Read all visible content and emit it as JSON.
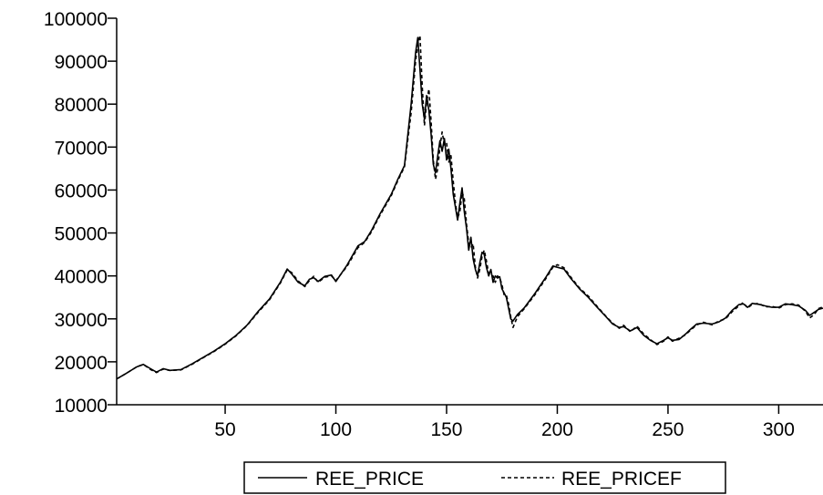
{
  "chart_data": {
    "type": "line",
    "title": "",
    "xlabel": "",
    "ylabel": "",
    "xlim": [
      1,
      320
    ],
    "ylim": [
      10000,
      100000
    ],
    "x_ticks": [
      50,
      100,
      150,
      200,
      250,
      300
    ],
    "y_ticks": [
      10000,
      20000,
      30000,
      40000,
      50000,
      60000,
      70000,
      80000,
      90000,
      100000
    ],
    "grid": false,
    "legend_position": "bottom",
    "series": [
      {
        "name": "REE_PRICE",
        "style": "solid",
        "color": "#000000",
        "points": [
          [
            1,
            16000
          ],
          [
            5,
            17200
          ],
          [
            10,
            18800
          ],
          [
            13,
            19400
          ],
          [
            16,
            18500
          ],
          [
            19,
            17600
          ],
          [
            22,
            18400
          ],
          [
            25,
            18000
          ],
          [
            30,
            18200
          ],
          [
            35,
            19500
          ],
          [
            40,
            21000
          ],
          [
            45,
            22500
          ],
          [
            50,
            24200
          ],
          [
            55,
            26200
          ],
          [
            60,
            28600
          ],
          [
            65,
            31800
          ],
          [
            70,
            34600
          ],
          [
            75,
            38600
          ],
          [
            78,
            41600
          ],
          [
            80,
            40500
          ],
          [
            83,
            38500
          ],
          [
            86,
            37700
          ],
          [
            88,
            39200
          ],
          [
            90,
            39600
          ],
          [
            92,
            38700
          ],
          [
            95,
            39900
          ],
          [
            98,
            40200
          ],
          [
            100,
            38700
          ],
          [
            105,
            42500
          ],
          [
            110,
            47000
          ],
          [
            113,
            48000
          ],
          [
            116,
            50500
          ],
          [
            120,
            54500
          ],
          [
            125,
            59000
          ],
          [
            128,
            62500
          ],
          [
            131,
            65700
          ],
          [
            134,
            80000
          ],
          [
            136,
            92000
          ],
          [
            137,
            95500
          ],
          [
            138,
            88000
          ],
          [
            139,
            80000
          ],
          [
            140,
            76500
          ],
          [
            141,
            82000
          ],
          [
            142,
            78500
          ],
          [
            143,
            73000
          ],
          [
            144,
            66000
          ],
          [
            145,
            64000
          ],
          [
            146,
            68000
          ],
          [
            147,
            71500
          ],
          [
            148,
            69000
          ],
          [
            149,
            72000
          ],
          [
            150,
            67000
          ],
          [
            151,
            69500
          ],
          [
            152,
            65000
          ],
          [
            153,
            59000
          ],
          [
            154,
            56000
          ],
          [
            155,
            53000
          ],
          [
            156,
            57000
          ],
          [
            157,
            60500
          ],
          [
            158,
            55000
          ],
          [
            159,
            51000
          ],
          [
            160,
            46000
          ],
          [
            161,
            49000
          ],
          [
            162,
            44000
          ],
          [
            163,
            41500
          ],
          [
            164,
            40000
          ],
          [
            165,
            43000
          ],
          [
            166,
            45500
          ],
          [
            167,
            45000
          ],
          [
            168,
            42000
          ],
          [
            169,
            40000
          ],
          [
            170,
            41500
          ],
          [
            171,
            38500
          ],
          [
            172,
            40000
          ],
          [
            173,
            39500
          ],
          [
            174,
            39800
          ],
          [
            175,
            37000
          ],
          [
            176,
            36000
          ],
          [
            177,
            35000
          ],
          [
            178,
            32500
          ],
          [
            179,
            30000
          ],
          [
            180,
            29500
          ],
          [
            182,
            31000
          ],
          [
            185,
            32500
          ],
          [
            190,
            36000
          ],
          [
            195,
            39800
          ],
          [
            198,
            42300
          ],
          [
            200,
            42000
          ],
          [
            203,
            41600
          ],
          [
            206,
            39500
          ],
          [
            210,
            37000
          ],
          [
            214,
            35000
          ],
          [
            218,
            32700
          ],
          [
            222,
            30500
          ],
          [
            225,
            28800
          ],
          [
            228,
            28000
          ],
          [
            230,
            28200
          ],
          [
            233,
            27200
          ],
          [
            236,
            28000
          ],
          [
            239,
            26200
          ],
          [
            242,
            25000
          ],
          [
            245,
            24200
          ],
          [
            248,
            25000
          ],
          [
            250,
            25600
          ],
          [
            252,
            25000
          ],
          [
            255,
            25200
          ],
          [
            258,
            26500
          ],
          [
            260,
            27500
          ],
          [
            263,
            28800
          ],
          [
            266,
            29000
          ],
          [
            270,
            28800
          ],
          [
            273,
            29300
          ],
          [
            276,
            30200
          ],
          [
            279,
            32000
          ],
          [
            282,
            33300
          ],
          [
            284,
            33500
          ],
          [
            286,
            32700
          ],
          [
            288,
            33600
          ],
          [
            291,
            33400
          ],
          [
            294,
            33000
          ],
          [
            297,
            32700
          ],
          [
            300,
            32700
          ],
          [
            303,
            33500
          ],
          [
            306,
            33300
          ],
          [
            309,
            33000
          ],
          [
            312,
            32000
          ],
          [
            314,
            30800
          ],
          [
            316,
            31500
          ],
          [
            318,
            32200
          ],
          [
            320,
            32500
          ]
        ]
      },
      {
        "name": "REE_PRICEF",
        "style": "dashed",
        "color": "#000000",
        "points": [
          [
            1,
            16000
          ],
          [
            5,
            17200
          ],
          [
            10,
            18800
          ],
          [
            13,
            19400
          ],
          [
            16,
            18300
          ],
          [
            19,
            17500
          ],
          [
            22,
            18300
          ],
          [
            25,
            18000
          ],
          [
            30,
            18100
          ],
          [
            35,
            19400
          ],
          [
            40,
            20900
          ],
          [
            45,
            22400
          ],
          [
            50,
            24100
          ],
          [
            55,
            26100
          ],
          [
            60,
            28500
          ],
          [
            65,
            31600
          ],
          [
            70,
            34400
          ],
          [
            75,
            38400
          ],
          [
            78,
            41400
          ],
          [
            80,
            40800
          ],
          [
            83,
            38800
          ],
          [
            86,
            37500
          ],
          [
            88,
            38900
          ],
          [
            90,
            39900
          ],
          [
            92,
            38500
          ],
          [
            95,
            39700
          ],
          [
            98,
            40000
          ],
          [
            100,
            38900
          ],
          [
            105,
            42200
          ],
          [
            110,
            46600
          ],
          [
            113,
            47800
          ],
          [
            116,
            50200
          ],
          [
            120,
            54200
          ],
          [
            125,
            58700
          ],
          [
            128,
            62200
          ],
          [
            131,
            65400
          ],
          [
            134,
            78000
          ],
          [
            136,
            90000
          ],
          [
            137,
            94000
          ],
          [
            138,
            96000
          ],
          [
            139,
            84000
          ],
          [
            140,
            75000
          ],
          [
            141,
            80500
          ],
          [
            142,
            83500
          ],
          [
            143,
            76000
          ],
          [
            144,
            67000
          ],
          [
            145,
            62500
          ],
          [
            146,
            65000
          ],
          [
            147,
            70000
          ],
          [
            148,
            73500
          ],
          [
            149,
            70500
          ],
          [
            150,
            71000
          ],
          [
            151,
            66500
          ],
          [
            152,
            68000
          ],
          [
            153,
            62000
          ],
          [
            154,
            57000
          ],
          [
            155,
            53500
          ],
          [
            156,
            55000
          ],
          [
            157,
            59500
          ],
          [
            158,
            58000
          ],
          [
            159,
            52000
          ],
          [
            160,
            47500
          ],
          [
            161,
            46500
          ],
          [
            162,
            47500
          ],
          [
            163,
            42000
          ],
          [
            164,
            39500
          ],
          [
            165,
            41500
          ],
          [
            166,
            44500
          ],
          [
            167,
            46000
          ],
          [
            168,
            43500
          ],
          [
            169,
            40500
          ],
          [
            170,
            40000
          ],
          [
            171,
            40000
          ],
          [
            172,
            38500
          ],
          [
            173,
            40000
          ],
          [
            174,
            39500
          ],
          [
            175,
            38000
          ],
          [
            176,
            35500
          ],
          [
            177,
            35500
          ],
          [
            178,
            33500
          ],
          [
            179,
            30500
          ],
          [
            180,
            28000
          ],
          [
            182,
            30500
          ],
          [
            185,
            32300
          ],
          [
            190,
            35700
          ],
          [
            195,
            39500
          ],
          [
            198,
            42000
          ],
          [
            200,
            42600
          ],
          [
            203,
            41900
          ],
          [
            206,
            39800
          ],
          [
            210,
            37200
          ],
          [
            214,
            35300
          ],
          [
            218,
            32900
          ],
          [
            222,
            30600
          ],
          [
            225,
            29000
          ],
          [
            228,
            27800
          ],
          [
            230,
            28500
          ],
          [
            233,
            27000
          ],
          [
            236,
            28300
          ],
          [
            239,
            26500
          ],
          [
            242,
            25200
          ],
          [
            245,
            24000
          ],
          [
            248,
            24800
          ],
          [
            250,
            25800
          ],
          [
            252,
            24800
          ],
          [
            255,
            25500
          ],
          [
            258,
            26300
          ],
          [
            260,
            27300
          ],
          [
            263,
            28600
          ],
          [
            266,
            29200
          ],
          [
            270,
            28600
          ],
          [
            273,
            29500
          ],
          [
            276,
            30000
          ],
          [
            279,
            31700
          ],
          [
            282,
            33000
          ],
          [
            284,
            33800
          ],
          [
            286,
            32500
          ],
          [
            288,
            33400
          ],
          [
            291,
            33600
          ],
          [
            294,
            32800
          ],
          [
            297,
            32900
          ],
          [
            300,
            32500
          ],
          [
            303,
            33300
          ],
          [
            306,
            33500
          ],
          [
            309,
            33200
          ],
          [
            312,
            31800
          ],
          [
            314,
            30200
          ],
          [
            316,
            31000
          ],
          [
            318,
            32400
          ],
          [
            320,
            32800
          ]
        ]
      }
    ]
  }
}
